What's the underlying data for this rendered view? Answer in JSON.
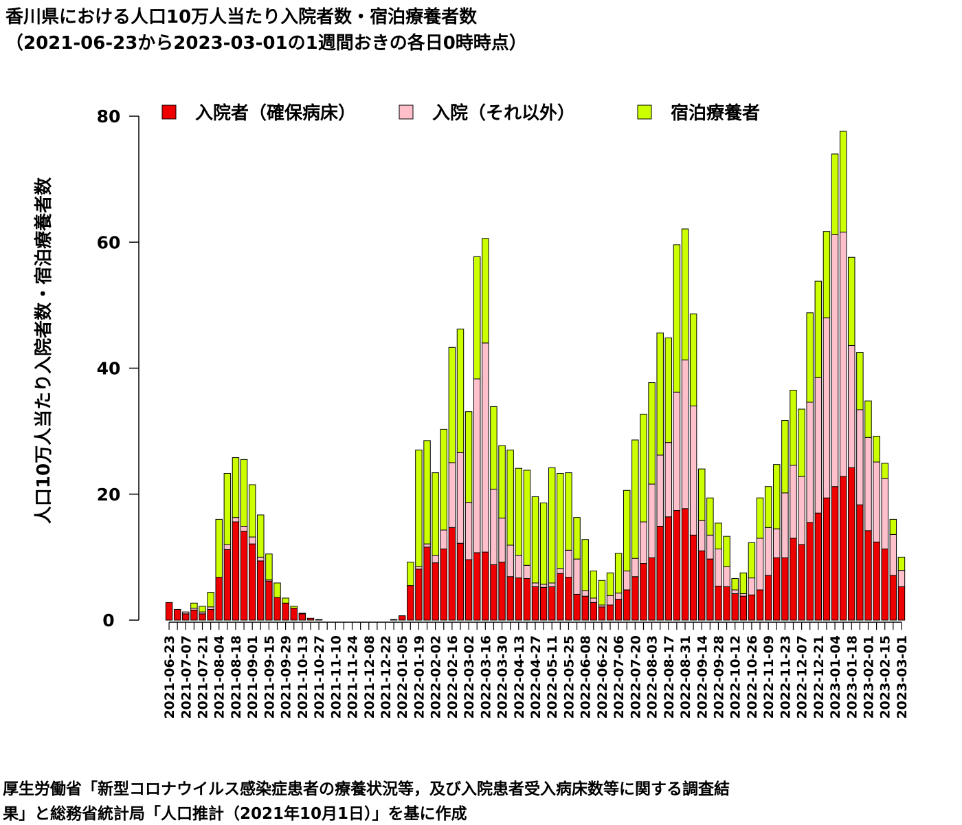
{
  "title": {
    "line1": "香川県における人口10万人当たり入院者数・宿泊療養者数",
    "line2": "（2021-06-23から2023-03-01の1週間おきの各日0時時点）"
  },
  "caption": {
    "line1": "厚生労働省「新型コロナウイルス感染症患者の療養状況等，及び入院患者受入病床数等に関する調査結",
    "line2": "果」と総務省統計局「人口推計（2021年10月1日）」を基に作成"
  },
  "colors": {
    "hosp_secured": "#ee0000",
    "hosp_other": "#ffc0cb",
    "hotel": "#ccff00"
  },
  "chart_data": {
    "type": "bar",
    "stacked": true,
    "ylabel": "人口10万人当たり入院者数・宿泊療養者数",
    "ylim": [
      0,
      80
    ],
    "yticks": [
      0,
      20,
      40,
      60,
      80
    ],
    "grid": false,
    "legend_position": "top",
    "tick_labels": [
      "2021-06-23",
      "2021-07-07",
      "2021-07-21",
      "2021-08-04",
      "2021-08-18",
      "2021-09-01",
      "2021-09-15",
      "2021-09-29",
      "2021-10-13",
      "2021-10-27",
      "2021-11-10",
      "2021-11-24",
      "2021-12-08",
      "2021-12-22",
      "2022-01-05",
      "2022-01-19",
      "2022-02-02",
      "2022-02-16",
      "2022-03-02",
      "2022-03-16",
      "2022-03-30",
      "2022-04-13",
      "2022-04-27",
      "2022-05-11",
      "2022-05-25",
      "2022-06-08",
      "2022-06-22",
      "2022-07-06",
      "2022-07-20",
      "2022-08-03",
      "2022-08-17",
      "2022-08-31",
      "2022-09-14",
      "2022-09-28",
      "2022-10-12",
      "2022-10-26",
      "2022-11-09",
      "2022-11-23",
      "2022-12-07",
      "2022-12-21",
      "2023-01-04",
      "2023-01-18",
      "2023-02-01",
      "2023-02-15",
      "2023-03-01"
    ],
    "categories": [
      "2021-06-23",
      "2021-06-30",
      "2021-07-07",
      "2021-07-14",
      "2021-07-21",
      "2021-07-28",
      "2021-08-04",
      "2021-08-11",
      "2021-08-18",
      "2021-08-25",
      "2021-09-01",
      "2021-09-08",
      "2021-09-15",
      "2021-09-22",
      "2021-09-29",
      "2021-10-06",
      "2021-10-13",
      "2021-10-20",
      "2021-10-27",
      "2021-11-03",
      "2021-11-10",
      "2021-11-17",
      "2021-11-24",
      "2021-12-01",
      "2021-12-08",
      "2021-12-15",
      "2021-12-22",
      "2021-12-29",
      "2022-01-05",
      "2022-01-12",
      "2022-01-19",
      "2022-01-26",
      "2022-02-02",
      "2022-02-09",
      "2022-02-16",
      "2022-02-23",
      "2022-03-02",
      "2022-03-09",
      "2022-03-16",
      "2022-03-23",
      "2022-03-30",
      "2022-04-06",
      "2022-04-13",
      "2022-04-20",
      "2022-04-27",
      "2022-05-04",
      "2022-05-11",
      "2022-05-18",
      "2022-05-25",
      "2022-06-01",
      "2022-06-08",
      "2022-06-15",
      "2022-06-22",
      "2022-06-29",
      "2022-07-06",
      "2022-07-13",
      "2022-07-20",
      "2022-07-27",
      "2022-08-03",
      "2022-08-10",
      "2022-08-17",
      "2022-08-24",
      "2022-08-31",
      "2022-09-07",
      "2022-09-14",
      "2022-09-21",
      "2022-09-28",
      "2022-10-05",
      "2022-10-12",
      "2022-10-19",
      "2022-10-26",
      "2022-11-02",
      "2022-11-09",
      "2022-11-16",
      "2022-11-23",
      "2022-11-30",
      "2022-12-07",
      "2022-12-14",
      "2022-12-21",
      "2022-12-28",
      "2023-01-04",
      "2023-01-11",
      "2023-01-18",
      "2023-01-25",
      "2023-02-01",
      "2023-02-08",
      "2023-02-15",
      "2023-02-22",
      "2023-03-01"
    ],
    "series": [
      {
        "name": "入院者（確保病床）",
        "values": [
          2.8,
          1.7,
          1.0,
          1.6,
          1.0,
          1.7,
          6.8,
          11.2,
          15.6,
          14.1,
          12.1,
          9.4,
          6.2,
          3.6,
          2.7,
          1.9,
          1.0,
          0.3,
          0.1,
          0,
          0,
          0,
          0,
          0,
          0,
          0,
          0,
          0.1,
          0.7,
          5.5,
          8.1,
          11.6,
          9.1,
          11.3,
          14.7,
          12.2,
          9.6,
          10.7,
          10.8,
          8.8,
          9.2,
          6.9,
          6.7,
          6.6,
          5.3,
          5.2,
          5.3,
          7.4,
          6.8,
          4.1,
          3.8,
          2.8,
          2.1,
          2.4,
          3.3,
          4.8,
          6.9,
          9.0,
          9.9,
          14.9,
          16.4,
          17.4,
          17.7,
          13.5,
          11.0,
          9.7,
          5.4,
          5.3,
          4.2,
          3.8,
          4.0,
          4.8,
          7.1,
          9.9,
          9.9,
          13.0,
          12.0,
          15.5,
          17.0,
          19.4,
          21.2,
          22.8,
          24.2,
          18.3,
          14.2,
          12.4,
          11.3,
          7.1,
          5.3
        ]
      },
      {
        "name": "入院（それ以外）",
        "values": [
          0,
          0,
          0.3,
          0.3,
          0.3,
          0.4,
          0,
          0.8,
          0.7,
          0.8,
          1.1,
          0.6,
          0.2,
          0,
          0,
          0,
          0,
          0,
          0,
          0,
          0,
          0,
          0,
          0,
          0,
          0,
          0,
          0,
          0,
          0,
          0.4,
          0.5,
          1.2,
          3.0,
          10.3,
          14.4,
          9.1,
          27.6,
          33.2,
          12.0,
          7.0,
          5.0,
          3.6,
          2.1,
          0.6,
          0.5,
          0.6,
          0.8,
          4.3,
          5.6,
          0.9,
          0.7,
          0.3,
          1.5,
          1.0,
          3.0,
          2.9,
          6.6,
          11.7,
          11.3,
          11.8,
          18.8,
          23.6,
          20.5,
          4.8,
          3.8,
          5.9,
          3.2,
          0.6,
          0.4,
          2.7,
          8.2,
          7.6,
          4.6,
          10.3,
          11.6,
          10.8,
          19.1,
          21.5,
          28.6,
          40.0,
          38.8,
          19.4,
          15.1,
          14.8,
          12.7,
          11.2,
          6.5,
          2.6
        ]
      },
      {
        "name": "宿泊療養者",
        "values": [
          0,
          0,
          0,
          0.8,
          0.9,
          2.3,
          9.2,
          11.3,
          9.5,
          10.6,
          8.3,
          6.7,
          4.1,
          2.3,
          0.8,
          0.3,
          0.1,
          0,
          0,
          0,
          0,
          0,
          0,
          0,
          0,
          0,
          0,
          0,
          0,
          3.7,
          18.5,
          16.4,
          13.1,
          16.0,
          18.3,
          19.6,
          14.4,
          19.4,
          16.6,
          13.1,
          11.5,
          15.1,
          13.8,
          15.1,
          13.7,
          12.9,
          18.3,
          15.1,
          12.3,
          6.6,
          8.1,
          4.3,
          3.9,
          3.6,
          6.3,
          12.8,
          18.8,
          17.1,
          16.1,
          19.4,
          16.6,
          23.4,
          20.8,
          14.6,
          8.2,
          5.9,
          4.1,
          4.8,
          1.8,
          3.3,
          5.6,
          6.4,
          6.5,
          10.2,
          11.5,
          11.9,
          10.7,
          14.2,
          15.3,
          13.7,
          12.8,
          16.0,
          14.0,
          9.1,
          5.8,
          4.1,
          2.4,
          2.4,
          2.1
        ]
      }
    ]
  }
}
